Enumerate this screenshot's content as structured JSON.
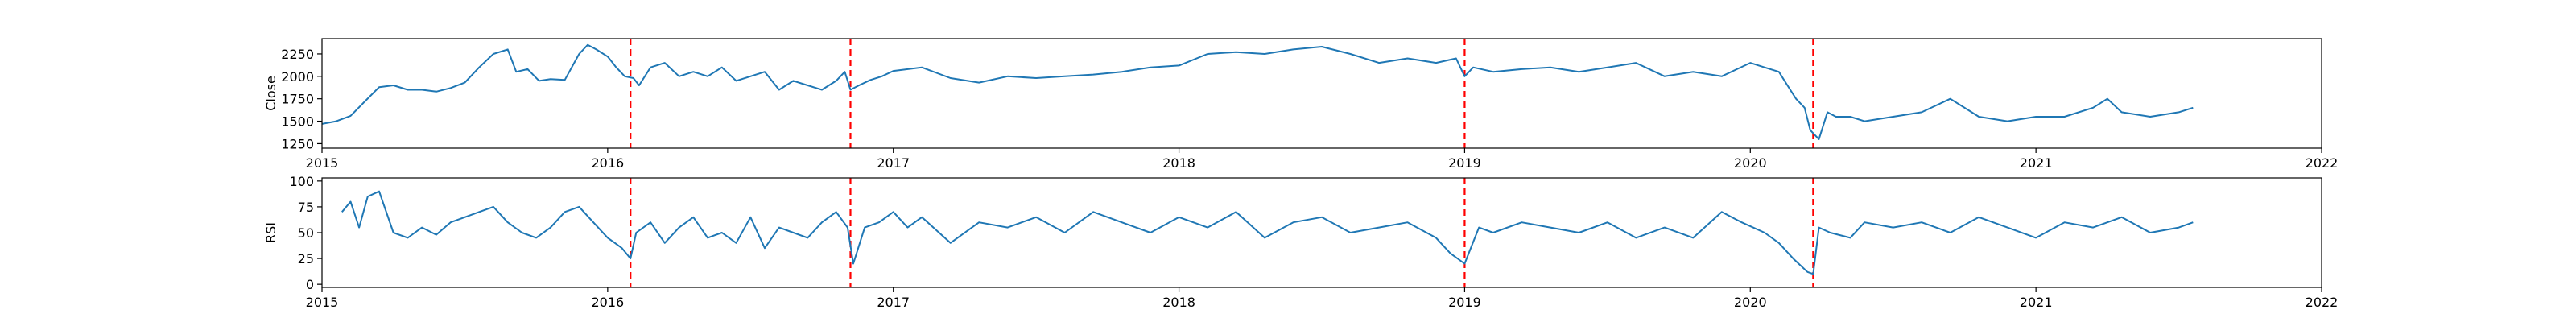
{
  "chart_data": [
    {
      "type": "line",
      "ylabel": "Close",
      "xlim": [
        2015,
        2022
      ],
      "ylim": [
        1200,
        2420
      ],
      "x_ticks": [
        2015,
        2016,
        2017,
        2018,
        2019,
        2020,
        2021,
        2022
      ],
      "x_tick_labels": [
        "2015",
        "2016",
        "2017",
        "2018",
        "2019",
        "2020",
        "2021",
        "2022"
      ],
      "y_ticks": [
        1250,
        1500,
        1750,
        2000,
        2250
      ],
      "y_tick_labels": [
        "1250",
        "1500",
        "1750",
        "2000",
        "2250"
      ],
      "series": [
        {
          "name": "Close",
          "color": "#1f77b4",
          "x": [
            2015.0,
            2015.05,
            2015.1,
            2015.15,
            2015.2,
            2015.25,
            2015.3,
            2015.35,
            2015.4,
            2015.45,
            2015.5,
            2015.55,
            2015.6,
            2015.65,
            2015.68,
            2015.72,
            2015.76,
            2015.8,
            2015.85,
            2015.9,
            2015.93,
            2015.96,
            2016.0,
            2016.03,
            2016.06,
            2016.09,
            2016.11,
            2016.15,
            2016.2,
            2016.25,
            2016.3,
            2016.35,
            2016.4,
            2016.45,
            2016.5,
            2016.55,
            2016.6,
            2016.65,
            2016.7,
            2016.75,
            2016.8,
            2016.83,
            2016.85,
            2016.88,
            2016.92,
            2016.96,
            2017.0,
            2017.1,
            2017.2,
            2017.3,
            2017.4,
            2017.5,
            2017.6,
            2017.7,
            2017.8,
            2017.9,
            2018.0,
            2018.1,
            2018.2,
            2018.3,
            2018.4,
            2018.5,
            2018.6,
            2018.7,
            2018.8,
            2018.9,
            2018.97,
            2019.0,
            2019.03,
            2019.1,
            2019.2,
            2019.3,
            2019.4,
            2019.5,
            2019.6,
            2019.7,
            2019.8,
            2019.9,
            2020.0,
            2020.05,
            2020.1,
            2020.13,
            2020.16,
            2020.19,
            2020.21,
            2020.24,
            2020.27,
            2020.3,
            2020.35,
            2020.4,
            2020.5,
            2020.6,
            2020.7,
            2020.8,
            2020.9,
            2021.0,
            2021.1,
            2021.2,
            2021.25,
            2021.3,
            2021.4,
            2021.5,
            2021.55
          ],
          "y": [
            1470,
            1500,
            1560,
            1720,
            1880,
            1900,
            1850,
            1850,
            1830,
            1870,
            1930,
            2100,
            2250,
            2300,
            2050,
            2080,
            1950,
            1970,
            1960,
            2250,
            2350,
            2300,
            2220,
            2100,
            2000,
            1980,
            1900,
            2100,
            2150,
            2000,
            2050,
            2000,
            2100,
            1950,
            2000,
            2050,
            1850,
            1950,
            1900,
            1850,
            1950,
            2050,
            1850,
            1900,
            1960,
            2000,
            2060,
            2100,
            1980,
            1930,
            2000,
            1980,
            2000,
            2020,
            2050,
            2100,
            2120,
            2250,
            2270,
            2250,
            2300,
            2330,
            2250,
            2150,
            2200,
            2150,
            2200,
            2000,
            2100,
            2050,
            2080,
            2100,
            2050,
            2100,
            2150,
            2000,
            2050,
            2000,
            2150,
            2100,
            2050,
            1900,
            1750,
            1650,
            1400,
            1300,
            1600,
            1550,
            1550,
            1500,
            1550,
            1600,
            1750,
            1550,
            1500,
            1550,
            1550,
            1650,
            1750,
            1600,
            1550,
            1600,
            1650
          ]
        }
      ],
      "vlines_x": [
        2016.08,
        2016.85,
        2019.0,
        2020.22
      ],
      "vline_color": "#ff0000"
    },
    {
      "type": "line",
      "ylabel": "RSI",
      "xlim": [
        2015,
        2022
      ],
      "ylim": [
        -3,
        103
      ],
      "x_ticks": [
        2015,
        2016,
        2017,
        2018,
        2019,
        2020,
        2021,
        2022
      ],
      "x_tick_labels": [
        "2015",
        "2016",
        "2017",
        "2018",
        "2019",
        "2020",
        "2021",
        "2022"
      ],
      "y_ticks": [
        0,
        25,
        50,
        75,
        100
      ],
      "y_tick_labels": [
        "0",
        "25",
        "50",
        "75",
        "100"
      ],
      "series": [
        {
          "name": "RSI",
          "color": "#1f77b4",
          "x": [
            2015.07,
            2015.1,
            2015.13,
            2015.16,
            2015.2,
            2015.25,
            2015.3,
            2015.35,
            2015.4,
            2015.45,
            2015.5,
            2015.55,
            2015.6,
            2015.65,
            2015.7,
            2015.75,
            2015.8,
            2015.85,
            2015.9,
            2015.95,
            2016.0,
            2016.05,
            2016.08,
            2016.1,
            2016.15,
            2016.2,
            2016.25,
            2016.3,
            2016.35,
            2016.4,
            2016.45,
            2016.5,
            2016.55,
            2016.6,
            2016.65,
            2016.7,
            2016.75,
            2016.8,
            2016.84,
            2016.86,
            2016.9,
            2016.95,
            2017.0,
            2017.05,
            2017.1,
            2017.2,
            2017.3,
            2017.4,
            2017.5,
            2017.6,
            2017.7,
            2017.8,
            2017.9,
            2018.0,
            2018.1,
            2018.2,
            2018.3,
            2018.4,
            2018.5,
            2018.6,
            2018.7,
            2018.8,
            2018.9,
            2018.95,
            2019.0,
            2019.05,
            2019.1,
            2019.2,
            2019.3,
            2019.4,
            2019.5,
            2019.6,
            2019.7,
            2019.8,
            2019.9,
            2019.97,
            2020.05,
            2020.1,
            2020.15,
            2020.2,
            2020.22,
            2020.24,
            2020.28,
            2020.35,
            2020.4,
            2020.5,
            2020.6,
            2020.7,
            2020.8,
            2020.9,
            2021.0,
            2021.1,
            2021.2,
            2021.3,
            2021.4,
            2021.5,
            2021.55
          ],
          "y": [
            70,
            80,
            55,
            85,
            90,
            50,
            45,
            55,
            48,
            60,
            65,
            70,
            75,
            60,
            50,
            45,
            55,
            70,
            75,
            60,
            45,
            35,
            25,
            50,
            60,
            40,
            55,
            65,
            45,
            50,
            40,
            65,
            35,
            55,
            50,
            45,
            60,
            70,
            55,
            20,
            55,
            60,
            70,
            55,
            65,
            40,
            60,
            55,
            65,
            50,
            70,
            60,
            50,
            65,
            55,
            70,
            45,
            60,
            65,
            50,
            55,
            60,
            45,
            30,
            20,
            55,
            50,
            60,
            55,
            50,
            60,
            45,
            55,
            45,
            70,
            60,
            50,
            40,
            25,
            12,
            10,
            55,
            50,
            45,
            60,
            55,
            60,
            50,
            65,
            55,
            45,
            60,
            55,
            65,
            50,
            55,
            60
          ]
        }
      ],
      "vlines_x": [
        2016.08,
        2016.85,
        2019.0,
        2020.22
      ],
      "vline_color": "#ff0000"
    }
  ]
}
